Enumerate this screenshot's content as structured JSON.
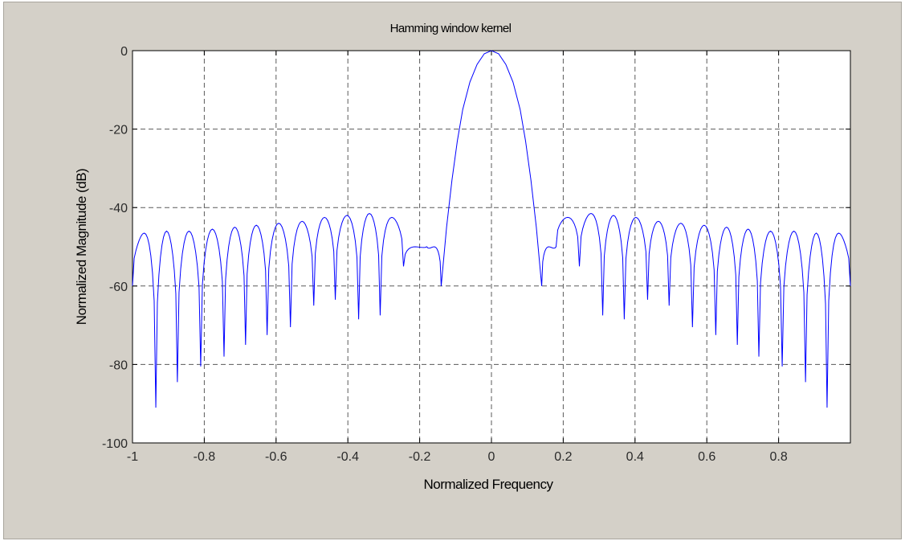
{
  "chart_data": {
    "type": "line",
    "title": "Hamming window kernel",
    "xlabel": "Normalized Frequency",
    "ylabel": "Normalized Magnitude (dB)",
    "xlim": [
      -1,
      1
    ],
    "ylim": [
      -100,
      0
    ],
    "grid": true,
    "x_ticks": [
      -1,
      -0.8,
      -0.6,
      -0.4,
      -0.2,
      0,
      0.2,
      0.4,
      0.6,
      0.8
    ],
    "x_tick_labels": [
      "-1",
      "-0.8",
      "-0.6",
      "-0.4",
      "-0.2",
      "0",
      "0.2",
      "0.4",
      "0.6",
      "0.8"
    ],
    "y_ticks": [
      0,
      -20,
      -40,
      -60,
      -80,
      -100
    ],
    "y_tick_labels": [
      "0",
      "-20",
      "-40",
      "-60",
      "-80",
      "-100"
    ],
    "series_color": "#0000ff",
    "series": [
      {
        "mainlobe": {
          "x": [
            -0.14,
            -0.125,
            -0.11,
            -0.095,
            -0.08,
            -0.06,
            -0.04,
            -0.02,
            0,
            0.02,
            0.04,
            0.06,
            0.08,
            0.095,
            0.11,
            0.125,
            0.14
          ],
          "y": [
            -60,
            -45,
            -33,
            -23,
            -15,
            -8,
            -3.5,
            -0.8,
            0,
            -0.8,
            -3.5,
            -8,
            -15,
            -23,
            -33,
            -45,
            -60
          ]
        },
        "sidelobe_nulls": [
          -0.935,
          -0.875,
          -0.81,
          -0.745,
          -0.685,
          -0.625,
          -0.56,
          -0.495,
          -0.435,
          -0.37,
          -0.31,
          -0.245,
          -0.18,
          0.18,
          0.245,
          0.31,
          0.37,
          0.435,
          0.495,
          0.56,
          0.625,
          0.685,
          0.745,
          0.81,
          0.875,
          0.935
        ],
        "null_depths": [
          -91,
          -84.5,
          -80.5,
          -78,
          -75,
          -72.5,
          -70.5,
          -65,
          -63.5,
          -68.5,
          -67.5,
          -55,
          -50,
          -50,
          -55,
          -67.5,
          -68.5,
          -63.5,
          -65,
          -70.5,
          -72.5,
          -75,
          -78,
          -80.5,
          -84.5,
          -91
        ],
        "sidelobe_peaks": [
          -46.5,
          -46,
          -46,
          -45.5,
          -45,
          -44.5,
          -44,
          -43.5,
          -42.5,
          -42,
          -41.5,
          -42.5,
          -50,
          -42.5,
          -41.5,
          -42,
          -42.5,
          -43.5,
          -44,
          -44.5,
          -45,
          -45.5,
          -46,
          -46,
          -46.5
        ],
        "edge_value": -60
      }
    ]
  }
}
